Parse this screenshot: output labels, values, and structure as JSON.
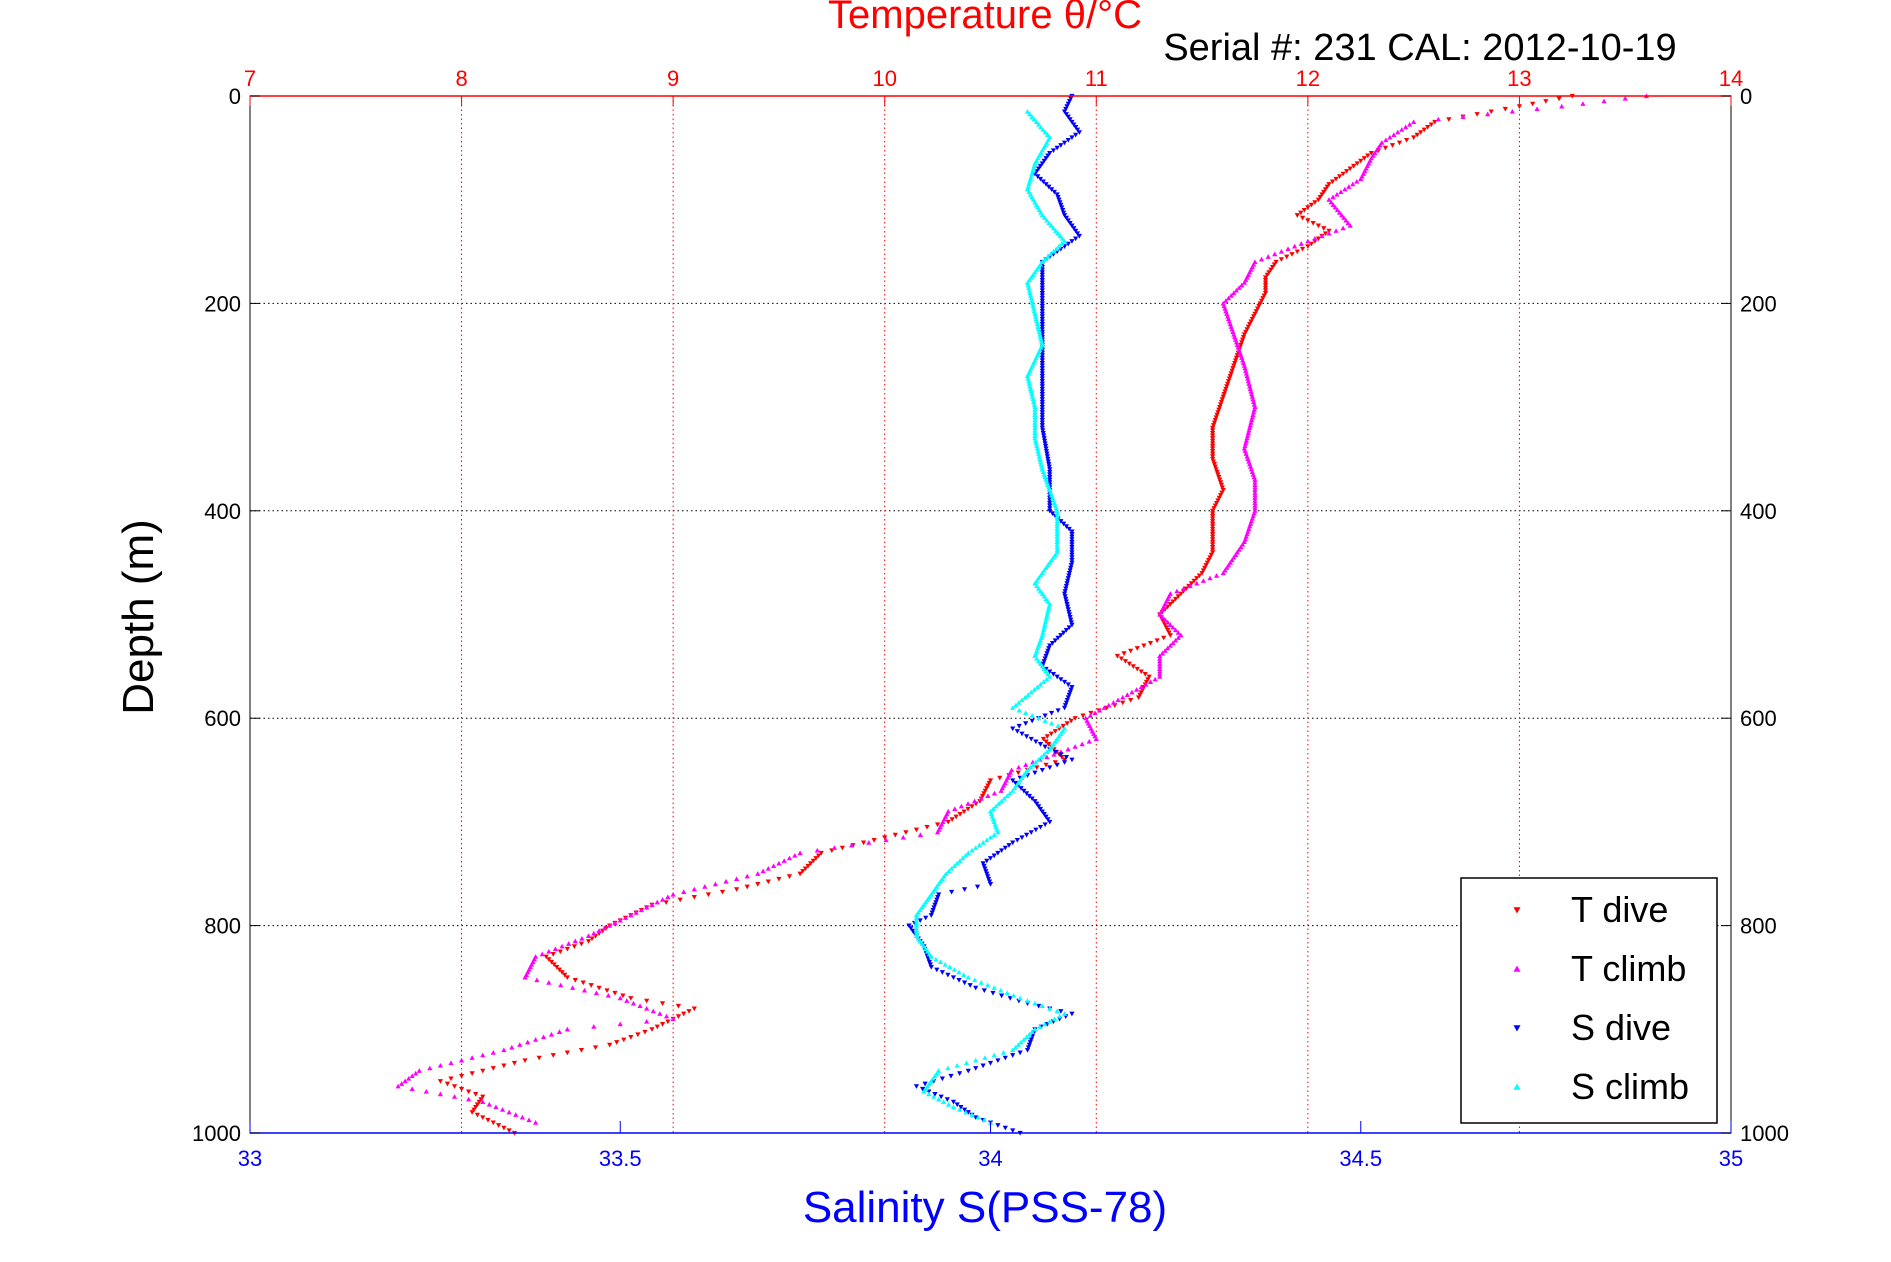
{
  "chart_data": {
    "type": "scatter",
    "title": "Temperature θ/°C",
    "subtitle": "Serial #: 231  CAL: 2012-10-19",
    "ylabel": "Depth (m)",
    "xlabel_bottom": "Salinity S(PSS-78)",
    "xlabel_top": "Temperature θ/°C",
    "ylim": [
      1000,
      0
    ],
    "y_reversed": true,
    "xlim_bottom": [
      33,
      35
    ],
    "xlim_top": [
      7,
      14
    ],
    "xticks_bottom": [
      "33",
      "33.5",
      "34",
      "34.5",
      "35"
    ],
    "xticks_top": [
      "7",
      "8",
      "9",
      "10",
      "11",
      "12",
      "13",
      "14"
    ],
    "yticks": [
      "0",
      "200",
      "400",
      "600",
      "800",
      "1000"
    ],
    "grid": true,
    "legend_position": "bottom-right",
    "colors": {
      "temperature_axis": "#ff0000",
      "salinity_axis": "#0000ff",
      "t_dive": "#ff0000",
      "t_climb": "#ff00ff",
      "s_dive": "#0000ff",
      "s_climb": "#00ffff"
    },
    "series": [
      {
        "name": "T dive",
        "axis": "top",
        "marker": "down-triangle",
        "color": "#ff0000",
        "points": [
          [
            13.25,
            0
          ],
          [
            13.0,
            10
          ],
          [
            12.6,
            25
          ],
          [
            12.5,
            40
          ],
          [
            12.3,
            55
          ],
          [
            12.2,
            70
          ],
          [
            12.1,
            85
          ],
          [
            12.05,
            100
          ],
          [
            11.95,
            115
          ],
          [
            12.1,
            130
          ],
          [
            12.0,
            145
          ],
          [
            11.85,
            160
          ],
          [
            11.8,
            175
          ],
          [
            11.8,
            190
          ],
          [
            11.75,
            210
          ],
          [
            11.7,
            230
          ],
          [
            11.65,
            260
          ],
          [
            11.6,
            290
          ],
          [
            11.55,
            320
          ],
          [
            11.55,
            350
          ],
          [
            11.6,
            380
          ],
          [
            11.55,
            400
          ],
          [
            11.55,
            420
          ],
          [
            11.55,
            440
          ],
          [
            11.5,
            460
          ],
          [
            11.4,
            480
          ],
          [
            11.3,
            500
          ],
          [
            11.35,
            520
          ],
          [
            11.1,
            540
          ],
          [
            11.25,
            560
          ],
          [
            11.2,
            580
          ],
          [
            10.9,
            600
          ],
          [
            10.75,
            620
          ],
          [
            10.85,
            640
          ],
          [
            10.5,
            660
          ],
          [
            10.45,
            680
          ],
          [
            10.3,
            700
          ],
          [
            10.0,
            715
          ],
          [
            9.7,
            730
          ],
          [
            9.6,
            750
          ],
          [
            9.3,
            765
          ],
          [
            8.9,
            780
          ],
          [
            8.7,
            800
          ],
          [
            8.6,
            815
          ],
          [
            8.4,
            830
          ],
          [
            8.5,
            850
          ],
          [
            8.8,
            870
          ],
          [
            9.1,
            880
          ],
          [
            8.9,
            900
          ],
          [
            8.7,
            915
          ],
          [
            8.3,
            930
          ],
          [
            7.9,
            950
          ],
          [
            8.1,
            965
          ],
          [
            8.05,
            980
          ],
          [
            8.25,
            1000
          ]
        ]
      },
      {
        "name": "T climb",
        "axis": "top",
        "marker": "up-triangle",
        "color": "#ff00ff",
        "points": [
          [
            13.6,
            0
          ],
          [
            13.2,
            10
          ],
          [
            12.5,
            25
          ],
          [
            12.35,
            45
          ],
          [
            12.3,
            60
          ],
          [
            12.25,
            80
          ],
          [
            12.1,
            100
          ],
          [
            12.2,
            125
          ],
          [
            12.0,
            140
          ],
          [
            11.75,
            160
          ],
          [
            11.7,
            180
          ],
          [
            11.6,
            200
          ],
          [
            11.65,
            230
          ],
          [
            11.7,
            260
          ],
          [
            11.75,
            300
          ],
          [
            11.7,
            340
          ],
          [
            11.75,
            370
          ],
          [
            11.75,
            400
          ],
          [
            11.7,
            430
          ],
          [
            11.6,
            460
          ],
          [
            11.35,
            480
          ],
          [
            11.3,
            500
          ],
          [
            11.4,
            520
          ],
          [
            11.3,
            540
          ],
          [
            11.3,
            560
          ],
          [
            10.95,
            600
          ],
          [
            11.0,
            620
          ],
          [
            10.6,
            650
          ],
          [
            10.55,
            670
          ],
          [
            10.3,
            690
          ],
          [
            10.25,
            710
          ],
          [
            9.6,
            730
          ],
          [
            9.4,
            750
          ],
          [
            9.0,
            770
          ],
          [
            8.8,
            790
          ],
          [
            8.6,
            810
          ],
          [
            8.35,
            830
          ],
          [
            8.3,
            850
          ],
          [
            8.75,
            870
          ],
          [
            9.0,
            890
          ],
          [
            8.5,
            900
          ],
          [
            8.2,
            920
          ],
          [
            7.8,
            940
          ],
          [
            7.7,
            955
          ],
          [
            8.1,
            970
          ],
          [
            8.35,
            990
          ]
        ]
      },
      {
        "name": "S dive",
        "axis": "bottom",
        "marker": "down-triangle",
        "color": "#0000ff",
        "points": [
          [
            34.11,
            0
          ],
          [
            34.1,
            15
          ],
          [
            34.12,
            35
          ],
          [
            34.08,
            55
          ],
          [
            34.06,
            75
          ],
          [
            34.09,
            95
          ],
          [
            34.1,
            115
          ],
          [
            34.12,
            135
          ],
          [
            34.07,
            160
          ],
          [
            34.07,
            180
          ],
          [
            34.07,
            210
          ],
          [
            34.07,
            240
          ],
          [
            34.07,
            280
          ],
          [
            34.07,
            320
          ],
          [
            34.08,
            360
          ],
          [
            34.08,
            400
          ],
          [
            34.11,
            420
          ],
          [
            34.11,
            450
          ],
          [
            34.1,
            480
          ],
          [
            34.11,
            510
          ],
          [
            34.08,
            530
          ],
          [
            34.07,
            550
          ],
          [
            34.11,
            570
          ],
          [
            34.1,
            590
          ],
          [
            34.03,
            610
          ],
          [
            34.08,
            630
          ],
          [
            34.11,
            640
          ],
          [
            34.03,
            660
          ],
          [
            34.06,
            680
          ],
          [
            34.08,
            700
          ],
          [
            34.03,
            720
          ],
          [
            33.99,
            740
          ],
          [
            34.0,
            760
          ],
          [
            33.93,
            770
          ],
          [
            33.92,
            790
          ],
          [
            33.89,
            800
          ],
          [
            33.91,
            820
          ],
          [
            33.92,
            840
          ],
          [
            33.98,
            860
          ],
          [
            34.05,
            875
          ],
          [
            34.11,
            885
          ],
          [
            34.06,
            900
          ],
          [
            34.05,
            920
          ],
          [
            33.97,
            940
          ],
          [
            33.9,
            955
          ],
          [
            33.95,
            970
          ],
          [
            33.98,
            985
          ],
          [
            34.04,
            1000
          ]
        ]
      },
      {
        "name": "S climb",
        "axis": "bottom",
        "marker": "up-triangle",
        "color": "#00ffff",
        "points": [
          [
            34.05,
            15
          ],
          [
            34.08,
            40
          ],
          [
            34.06,
            65
          ],
          [
            34.05,
            90
          ],
          [
            34.07,
            115
          ],
          [
            34.1,
            140
          ],
          [
            34.07,
            160
          ],
          [
            34.05,
            180
          ],
          [
            34.06,
            210
          ],
          [
            34.07,
            240
          ],
          [
            34.05,
            270
          ],
          [
            34.06,
            300
          ],
          [
            34.06,
            330
          ],
          [
            34.07,
            360
          ],
          [
            34.09,
            400
          ],
          [
            34.09,
            440
          ],
          [
            34.06,
            470
          ],
          [
            34.08,
            490
          ],
          [
            34.07,
            520
          ],
          [
            34.06,
            540
          ],
          [
            34.08,
            560
          ],
          [
            34.03,
            590
          ],
          [
            34.1,
            610
          ],
          [
            34.08,
            630
          ],
          [
            34.05,
            650
          ],
          [
            34.03,
            670
          ],
          [
            34.0,
            690
          ],
          [
            34.01,
            710
          ],
          [
            33.97,
            730
          ],
          [
            33.94,
            750
          ],
          [
            33.92,
            770
          ],
          [
            33.9,
            790
          ],
          [
            33.9,
            810
          ],
          [
            33.92,
            830
          ],
          [
            33.97,
            850
          ],
          [
            34.04,
            870
          ],
          [
            34.1,
            885
          ],
          [
            34.06,
            900
          ],
          [
            34.03,
            920
          ],
          [
            33.93,
            940
          ],
          [
            33.91,
            960
          ],
          [
            33.95,
            975
          ],
          [
            34.0,
            990
          ]
        ]
      }
    ]
  },
  "legend": {
    "items": [
      {
        "label": "T dive",
        "color": "#ff0000",
        "marker": "down-triangle"
      },
      {
        "label": "T climb",
        "color": "#ff00ff",
        "marker": "up-triangle"
      },
      {
        "label": "S dive",
        "color": "#0000ff",
        "marker": "down-triangle"
      },
      {
        "label": "S climb",
        "color": "#00ffff",
        "marker": "up-triangle"
      }
    ]
  }
}
